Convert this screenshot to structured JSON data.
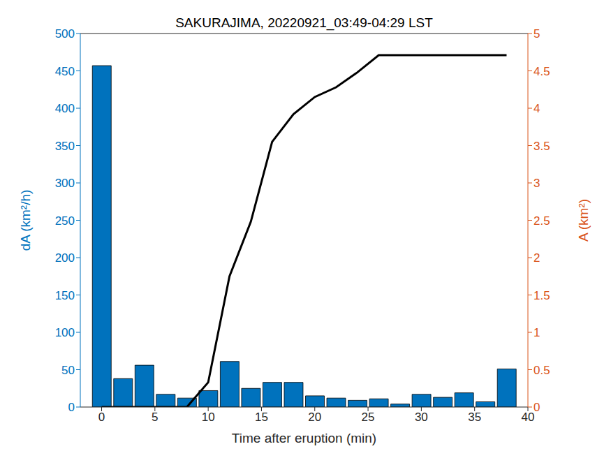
{
  "chart_data": {
    "type": "bar",
    "title": "SAKURAJIMA, 20220921_03:49-04:29 LST",
    "x_label": "Time after eruption (min)",
    "y_label": "dA (km²/h)",
    "y2_label": "A (km²)",
    "x": [
      0,
      2,
      4,
      6,
      8,
      10,
      12,
      14,
      16,
      18,
      20,
      22,
      24,
      26,
      28,
      30,
      32,
      34,
      36,
      38
    ],
    "series": [
      {
        "type": "bar",
        "color": "#0072BD",
        "values": [
          457,
          38,
          56,
          17,
          12,
          22,
          61,
          25,
          33,
          33,
          15,
          12,
          9,
          11,
          4,
          17,
          13,
          19,
          7,
          51
        ]
      },
      {
        "type": "line",
        "axis": "y2",
        "color": "#000000",
        "values": [
          0,
          0,
          0,
          0,
          0,
          0.33,
          1.75,
          2.48,
          3.55,
          3.92,
          4.15,
          4.28,
          4.48,
          4.71,
          4.71,
          4.71,
          4.71,
          4.71,
          4.71,
          4.71
        ]
      }
    ],
    "xlim": [
      -2,
      40
    ],
    "xticks": [
      0,
      5,
      10,
      15,
      20,
      25,
      30,
      35,
      40
    ],
    "ylim": [
      0,
      500
    ],
    "yticks": [
      0,
      50,
      100,
      150,
      200,
      250,
      300,
      350,
      400,
      450,
      500
    ],
    "y2lim": [
      0,
      5
    ],
    "y2ticks": [
      0,
      0.5,
      1,
      1.5,
      2,
      2.5,
      3,
      3.5,
      4,
      4.5,
      5
    ]
  }
}
